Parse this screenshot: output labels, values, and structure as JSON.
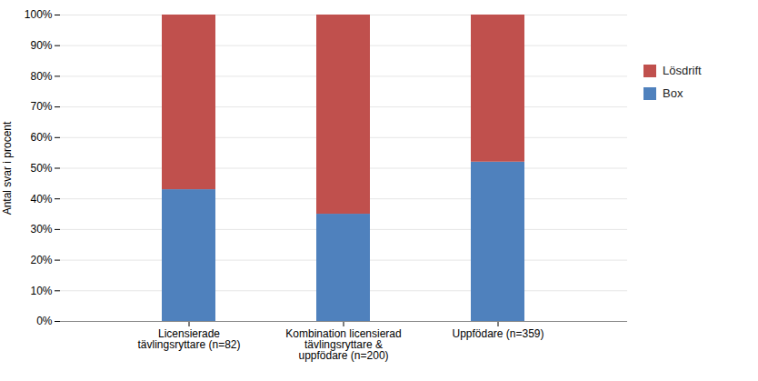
{
  "chart_data": {
    "type": "bar",
    "stacked": true,
    "categories": [
      "Licensierade\ntävlingsryttare (n=82)",
      "Kombination licensierad\ntävlingsryttare &\nuppfödare (n=200)",
      "Uppfödare (n=359)"
    ],
    "series": [
      {
        "name": "Box",
        "color": "#4F81BD",
        "values": [
          43,
          35,
          52
        ]
      },
      {
        "name": "Lösdrift",
        "color": "#C0504D",
        "values": [
          57,
          65,
          48
        ]
      }
    ],
    "ylabel": "Antal svar i procent",
    "ylim": [
      0,
      100
    ],
    "yticks": [
      {
        "value": 0,
        "label": "0%"
      },
      {
        "value": 10,
        "label": "10%"
      },
      {
        "value": 20,
        "label": "20%"
      },
      {
        "value": 30,
        "label": "30%"
      },
      {
        "value": 40,
        "label": "40%"
      },
      {
        "value": 50,
        "label": "50%"
      },
      {
        "value": 60,
        "label": "60%"
      },
      {
        "value": 70,
        "label": "70%"
      },
      {
        "value": 80,
        "label": "80%"
      },
      {
        "value": 90,
        "label": "90%"
      },
      {
        "value": 100,
        "label": "100%"
      }
    ],
    "grid": true,
    "legend": "right"
  }
}
